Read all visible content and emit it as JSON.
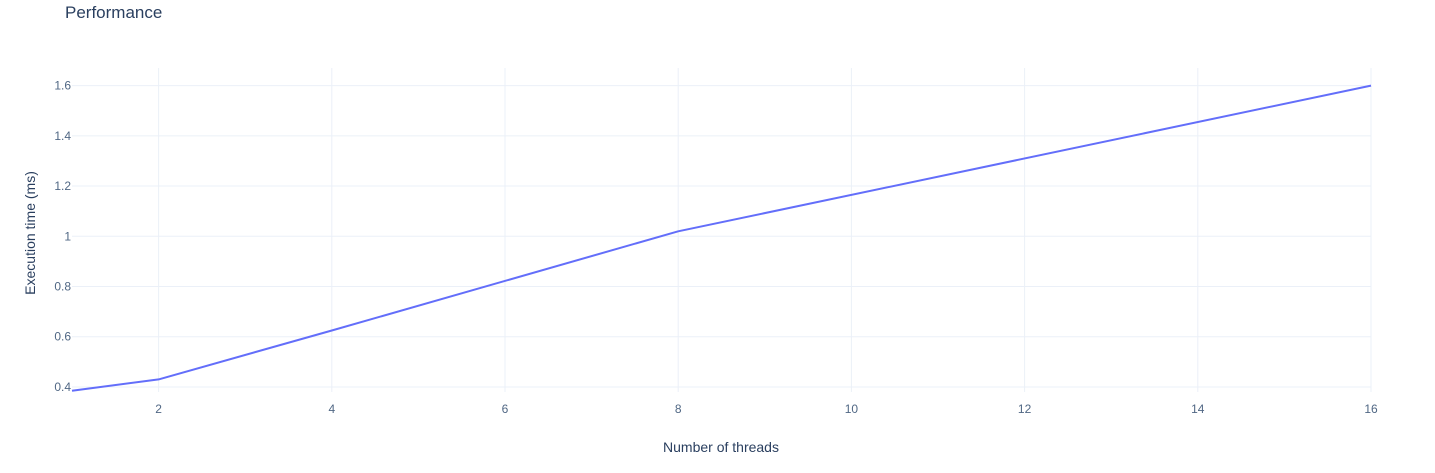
{
  "chart_data": {
    "type": "line",
    "title": "Performance",
    "xlabel": "Number of threads",
    "ylabel": "Execution time (ms)",
    "xlim": [
      1,
      16
    ],
    "ylim": [
      0.38,
      1.67
    ],
    "x_ticks": [
      2,
      4,
      6,
      8,
      10,
      12,
      14,
      16
    ],
    "y_ticks": [
      0.4,
      0.6,
      0.8,
      1,
      1.2,
      1.4,
      1.6
    ],
    "y_tick_labels": [
      "0.4",
      "0.6",
      "0.8",
      "1",
      "1.2",
      "1.4",
      "1.6"
    ],
    "grid": true,
    "series": [
      {
        "color": "#636efa",
        "x": [
          1,
          2,
          4,
          8,
          16
        ],
        "y": [
          0.385,
          0.43,
          0.625,
          1.02,
          1.6
        ]
      }
    ]
  }
}
